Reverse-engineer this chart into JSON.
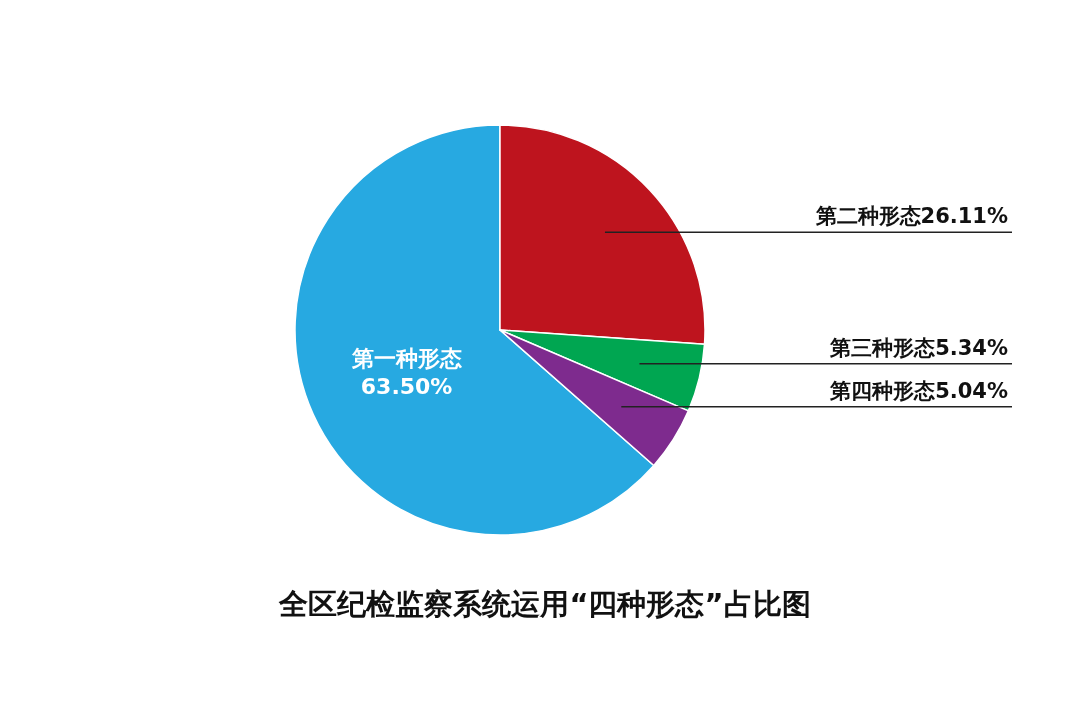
{
  "chart_data": {
    "type": "pie",
    "title": "全区纪检监察系统运用“四种形态”占比图",
    "categories": [
      "第一种形态",
      "第二种形态",
      "第三种形态",
      "第四种形态"
    ],
    "values": [
      63.5,
      26.11,
      5.34,
      5.04
    ],
    "colors": [
      "#27a9e1",
      "#be141e",
      "#00a651",
      "#7e2b8e"
    ],
    "value_labels": [
      "63.50%",
      "26.11%",
      "5.34%",
      "5.04%"
    ]
  }
}
